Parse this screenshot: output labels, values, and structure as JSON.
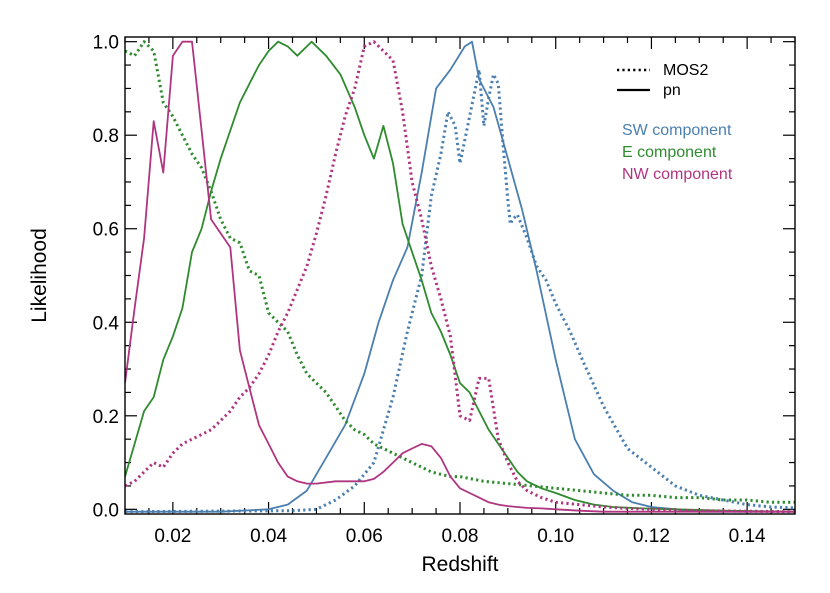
{
  "chart_data": {
    "type": "line",
    "xlabel": "Redshift",
    "ylabel": "Likelihood",
    "xlim": [
      0.01,
      0.15
    ],
    "ylim": [
      -0.01,
      1.01
    ],
    "x_ticks": [
      0.02,
      0.04,
      0.06,
      0.08,
      0.1,
      0.12,
      0.14
    ],
    "x_tick_labels": [
      "0.02",
      "0.04",
      "0.06",
      "0.08",
      "0.10",
      "0.12",
      "0.14"
    ],
    "y_ticks": [
      0.0,
      0.2,
      0.4,
      0.6,
      0.8,
      1.0
    ],
    "y_tick_labels": [
      "0.0",
      "0.2",
      "0.4",
      "0.6",
      "0.8",
      "1.0"
    ],
    "grid": false,
    "legend_placement": "top-right",
    "legend": {
      "styles": [
        {
          "label": "MOS2",
          "dash": "dotted"
        },
        {
          "label": "pn",
          "dash": "solid"
        }
      ],
      "components": [
        {
          "label": "SW component",
          "color": "#4a7fb0"
        },
        {
          "label": "E component",
          "color": "#2e8b2e"
        },
        {
          "label": "NW component",
          "color": "#b03580"
        }
      ]
    },
    "series": [
      {
        "component": "SW component",
        "instrument": "pn",
        "color": "#4a7fb0",
        "dash": "solid",
        "x": [
          0.01,
          0.03,
          0.04,
          0.044,
          0.048,
          0.052,
          0.056,
          0.06,
          0.063,
          0.066,
          0.069,
          0.072,
          0.075,
          0.078,
          0.081,
          0.0825,
          0.084,
          0.087,
          0.09,
          0.093,
          0.096,
          0.1,
          0.104,
          0.108,
          0.112,
          0.116,
          0.12,
          0.125,
          0.13,
          0.15
        ],
        "y": [
          -0.005,
          -0.005,
          0.0,
          0.01,
          0.04,
          0.11,
          0.18,
          0.29,
          0.4,
          0.49,
          0.56,
          0.72,
          0.9,
          0.94,
          0.99,
          1.0,
          0.92,
          0.86,
          0.75,
          0.64,
          0.51,
          0.32,
          0.15,
          0.075,
          0.04,
          0.015,
          0.005,
          0.0,
          -0.005,
          -0.005
        ]
      },
      {
        "component": "SW component",
        "instrument": "MOS2",
        "color": "#4a7fb0",
        "dash": "dotted",
        "x": [
          0.01,
          0.045,
          0.05,
          0.054,
          0.058,
          0.062,
          0.066,
          0.069,
          0.072,
          0.074,
          0.076,
          0.0775,
          0.079,
          0.08,
          0.082,
          0.084,
          0.085,
          0.086,
          0.087,
          0.088,
          0.089,
          0.09,
          0.0905,
          0.091,
          0.092,
          0.094,
          0.096,
          0.098,
          0.1,
          0.103,
          0.106,
          0.11,
          0.115,
          0.12,
          0.125,
          0.13,
          0.135,
          0.14,
          0.145,
          0.15
        ],
        "y": [
          -0.005,
          -0.003,
          0.0,
          0.02,
          0.05,
          0.1,
          0.24,
          0.38,
          0.5,
          0.67,
          0.76,
          0.85,
          0.82,
          0.74,
          0.84,
          0.94,
          0.82,
          0.88,
          0.93,
          0.91,
          0.78,
          0.66,
          0.61,
          0.62,
          0.63,
          0.58,
          0.52,
          0.49,
          0.44,
          0.38,
          0.31,
          0.22,
          0.13,
          0.09,
          0.05,
          0.03,
          0.02,
          0.01,
          0.005,
          0.003
        ]
      },
      {
        "component": "E component",
        "instrument": "pn",
        "color": "#2e8b2e",
        "dash": "solid",
        "x": [
          0.01,
          0.012,
          0.014,
          0.016,
          0.018,
          0.02,
          0.022,
          0.024,
          0.026,
          0.028,
          0.03,
          0.032,
          0.034,
          0.036,
          0.038,
          0.04,
          0.042,
          0.044,
          0.046,
          0.048,
          0.049,
          0.05,
          0.052,
          0.055,
          0.058,
          0.06,
          0.062,
          0.064,
          0.066,
          0.068,
          0.07,
          0.072,
          0.074,
          0.076,
          0.078,
          0.08,
          0.082,
          0.084,
          0.086,
          0.088,
          0.09,
          0.092,
          0.094,
          0.097,
          0.1,
          0.104,
          0.108,
          0.112,
          0.118,
          0.125,
          0.135,
          0.15
        ],
        "y": [
          0.07,
          0.14,
          0.21,
          0.24,
          0.32,
          0.37,
          0.43,
          0.55,
          0.6,
          0.68,
          0.75,
          0.81,
          0.87,
          0.91,
          0.95,
          0.98,
          1.0,
          0.99,
          0.97,
          0.99,
          1.0,
          0.99,
          0.97,
          0.93,
          0.86,
          0.8,
          0.75,
          0.82,
          0.74,
          0.61,
          0.55,
          0.49,
          0.42,
          0.38,
          0.33,
          0.27,
          0.25,
          0.21,
          0.17,
          0.14,
          0.11,
          0.08,
          0.06,
          0.045,
          0.035,
          0.02,
          0.01,
          0.005,
          0.002,
          0.0,
          -0.003,
          -0.005
        ]
      },
      {
        "component": "E component",
        "instrument": "MOS2",
        "color": "#2e8b2e",
        "dash": "dotted",
        "x": [
          0.01,
          0.012,
          0.014,
          0.016,
          0.018,
          0.02,
          0.022,
          0.024,
          0.026,
          0.028,
          0.03,
          0.032,
          0.034,
          0.036,
          0.038,
          0.04,
          0.042,
          0.044,
          0.046,
          0.048,
          0.05,
          0.052,
          0.054,
          0.056,
          0.058,
          0.06,
          0.062,
          0.064,
          0.066,
          0.068,
          0.07,
          0.072,
          0.074,
          0.076,
          0.078,
          0.08,
          0.085,
          0.09,
          0.095,
          0.1,
          0.105,
          0.11,
          0.115,
          0.12,
          0.125,
          0.13,
          0.135,
          0.14,
          0.145,
          0.15
        ],
        "y": [
          0.98,
          0.97,
          1.0,
          0.98,
          0.87,
          0.84,
          0.8,
          0.76,
          0.73,
          0.68,
          0.62,
          0.58,
          0.57,
          0.51,
          0.5,
          0.42,
          0.4,
          0.38,
          0.33,
          0.29,
          0.27,
          0.25,
          0.22,
          0.19,
          0.17,
          0.16,
          0.14,
          0.13,
          0.12,
          0.11,
          0.1,
          0.09,
          0.08,
          0.075,
          0.07,
          0.07,
          0.06,
          0.055,
          0.05,
          0.045,
          0.04,
          0.035,
          0.03,
          0.03,
          0.025,
          0.025,
          0.02,
          0.02,
          0.015,
          0.015
        ]
      },
      {
        "component": "NW component",
        "instrument": "pn",
        "color": "#b03580",
        "dash": "solid",
        "x": [
          0.01,
          0.012,
          0.014,
          0.016,
          0.018,
          0.02,
          0.022,
          0.024,
          0.026,
          0.028,
          0.03,
          0.032,
          0.034,
          0.036,
          0.038,
          0.04,
          0.042,
          0.044,
          0.046,
          0.048,
          0.05,
          0.054,
          0.058,
          0.06,
          0.062,
          0.064,
          0.066,
          0.068,
          0.07,
          0.072,
          0.074,
          0.076,
          0.078,
          0.08,
          0.082,
          0.084,
          0.086,
          0.088,
          0.09,
          0.092,
          0.094,
          0.097,
          0.1,
          0.105,
          0.11,
          0.12,
          0.15
        ],
        "y": [
          0.27,
          0.43,
          0.58,
          0.83,
          0.72,
          0.97,
          1.0,
          1.0,
          0.81,
          0.62,
          0.59,
          0.56,
          0.34,
          0.26,
          0.18,
          0.14,
          0.1,
          0.07,
          0.06,
          0.055,
          0.055,
          0.06,
          0.06,
          0.06,
          0.065,
          0.08,
          0.1,
          0.12,
          0.13,
          0.14,
          0.135,
          0.11,
          0.07,
          0.045,
          0.035,
          0.025,
          0.015,
          0.01,
          0.007,
          0.005,
          0.003,
          0.002,
          0.0,
          -0.003,
          -0.005,
          -0.005,
          -0.005
        ]
      },
      {
        "component": "NW component",
        "instrument": "MOS2",
        "color": "#b03580",
        "dash": "dotted",
        "x": [
          0.01,
          0.012,
          0.014,
          0.016,
          0.018,
          0.02,
          0.022,
          0.024,
          0.026,
          0.028,
          0.03,
          0.032,
          0.034,
          0.036,
          0.038,
          0.04,
          0.042,
          0.044,
          0.046,
          0.048,
          0.05,
          0.052,
          0.054,
          0.056,
          0.058,
          0.06,
          0.062,
          0.064,
          0.066,
          0.068,
          0.07,
          0.072,
          0.074,
          0.076,
          0.078,
          0.08,
          0.082,
          0.084,
          0.086,
          0.088,
          0.09,
          0.092,
          0.094,
          0.097,
          0.1,
          0.105,
          0.11,
          0.115,
          0.12,
          0.13,
          0.15
        ],
        "y": [
          0.05,
          0.06,
          0.08,
          0.1,
          0.09,
          0.12,
          0.14,
          0.15,
          0.16,
          0.17,
          0.19,
          0.21,
          0.24,
          0.26,
          0.29,
          0.33,
          0.38,
          0.42,
          0.47,
          0.52,
          0.59,
          0.67,
          0.76,
          0.84,
          0.9,
          0.99,
          1.0,
          0.98,
          0.96,
          0.85,
          0.7,
          0.62,
          0.52,
          0.45,
          0.37,
          0.2,
          0.19,
          0.28,
          0.28,
          0.15,
          0.1,
          0.06,
          0.04,
          0.025,
          0.015,
          0.01,
          0.005,
          0.002,
          0.0,
          -0.003,
          -0.005
        ]
      }
    ]
  }
}
